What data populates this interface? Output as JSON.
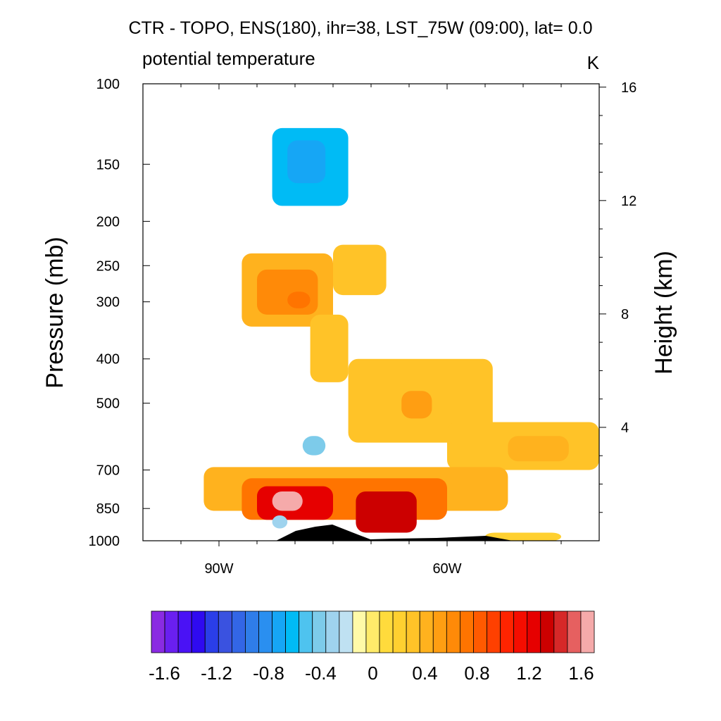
{
  "chart_data": {
    "type": "heatmap",
    "title": "CTR - TOPO, ENS(180), ihr=38, LST_75W (09:00), lat=  0.0",
    "subtitle_left": "potential temperature",
    "units": "K",
    "ylabel_left": "Pressure (mb)",
    "ylabel_right": "Height (km)",
    "pressure_ticks": [
      100,
      150,
      200,
      250,
      300,
      400,
      500,
      700,
      850,
      1000
    ],
    "pressure_tick_labels": [
      "100",
      "150",
      "200",
      "250",
      "300",
      "400",
      "500",
      "700",
      "850",
      "1000"
    ],
    "height_ticks_km": [
      4,
      8,
      12,
      16
    ],
    "height_tick_labels": [
      "4",
      "8",
      "12",
      "16"
    ],
    "xlim_lon": [
      -100,
      -40
    ],
    "x_ticks": [
      -90,
      -60
    ],
    "x_tick_labels": [
      "90W",
      "60W"
    ],
    "colorbar": {
      "levels": [
        -1.7,
        -1.6,
        -1.5,
        -1.4,
        -1.3,
        -1.2,
        -1.1,
        -1.0,
        -0.9,
        -0.8,
        -0.7,
        -0.6,
        -0.5,
        -0.4,
        -0.3,
        -0.2,
        -0.1,
        0.0,
        0.1,
        0.2,
        0.3,
        0.4,
        0.5,
        0.6,
        0.7,
        0.8,
        0.9,
        1.0,
        1.1,
        1.2,
        1.3,
        1.4,
        1.5,
        1.6,
        1.7
      ],
      "tick_values": [
        -1.6,
        -1.2,
        -0.8,
        -0.4,
        0,
        0.4,
        0.8,
        1.2,
        1.6
      ],
      "tick_labels": [
        "-1.6",
        "-1.2",
        "-0.8",
        "-0.4",
        "0",
        "0.4",
        "0.8",
        "1.2",
        "1.6"
      ],
      "colors": [
        "#8a2be2",
        "#6a1ff0",
        "#4a12f5",
        "#2f0af0",
        "#2a3ee8",
        "#3a52e0",
        "#3366e6",
        "#2f7de9",
        "#2a8ff0",
        "#16a6f5",
        "#00bbf5",
        "#4ec3ef",
        "#7dcbea",
        "#9fd3ee",
        "#bfe1f2",
        "#fffaa8",
        "#ffeb6a",
        "#ffdb3c",
        "#ffd030",
        "#ffc328",
        "#ffb21e",
        "#ff9e12",
        "#ff8a08",
        "#ff7400",
        "#ff5a00",
        "#ff4000",
        "#ff2400",
        "#f50d00",
        "#e60000",
        "#cc0000",
        "#d62828",
        "#e66060",
        "#f5aaaa"
      ]
    },
    "anomaly_regions": [
      {
        "lon_min": -83,
        "lon_max": -73,
        "p_top": 125,
        "p_bot": 185,
        "value": -0.7
      },
      {
        "lon_min": -81,
        "lon_max": -76,
        "p_top": 133,
        "p_bot": 165,
        "value": -0.8
      },
      {
        "lon_min": -87,
        "lon_max": -75,
        "p_top": 235,
        "p_bot": 340,
        "value": 0.3
      },
      {
        "lon_min": -75,
        "lon_max": -68,
        "p_top": 225,
        "p_bot": 290,
        "value": 0.2
      },
      {
        "lon_min": -85,
        "lon_max": -77,
        "p_top": 255,
        "p_bot": 320,
        "value": 0.5
      },
      {
        "lon_min": -81,
        "lon_max": -78,
        "p_top": 285,
        "p_bot": 310,
        "value": 0.6
      },
      {
        "lon_min": -78,
        "lon_max": -73,
        "p_top": 320,
        "p_bot": 450,
        "value": 0.2
      },
      {
        "lon_min": -73,
        "lon_max": -54,
        "p_top": 400,
        "p_bot": 610,
        "value": 0.25
      },
      {
        "lon_min": -66,
        "lon_max": -62,
        "p_top": 470,
        "p_bot": 540,
        "value": 0.4
      },
      {
        "lon_min": -60,
        "lon_max": -40,
        "p_top": 550,
        "p_bot": 700,
        "value": 0.2
      },
      {
        "lon_min": -52,
        "lon_max": -44,
        "p_top": 590,
        "p_bot": 670,
        "value": 0.3
      },
      {
        "lon_min": -92,
        "lon_max": -52,
        "p_top": 690,
        "p_bot": 860,
        "value": 0.3
      },
      {
        "lon_min": -87,
        "lon_max": -60,
        "p_top": 730,
        "p_bot": 900,
        "value": 0.6
      },
      {
        "lon_min": -85,
        "lon_max": -75,
        "p_top": 760,
        "p_bot": 900,
        "value": 1.1
      },
      {
        "lon_min": -83,
        "lon_max": -79,
        "p_top": 780,
        "p_bot": 860,
        "value": 1.6
      },
      {
        "lon_min": -72,
        "lon_max": -64,
        "p_top": 780,
        "p_bot": 960,
        "value": 1.2
      },
      {
        "lon_min": -79,
        "lon_max": -76,
        "p_top": 590,
        "p_bot": 650,
        "value": -0.5
      },
      {
        "lon_min": -83,
        "lon_max": -81,
        "p_top": 880,
        "p_bot": 940,
        "value": -0.4
      },
      {
        "lon_min": -55,
        "lon_max": -45,
        "p_top": 960,
        "p_bot": 1000,
        "value": 0.15
      }
    ]
  }
}
